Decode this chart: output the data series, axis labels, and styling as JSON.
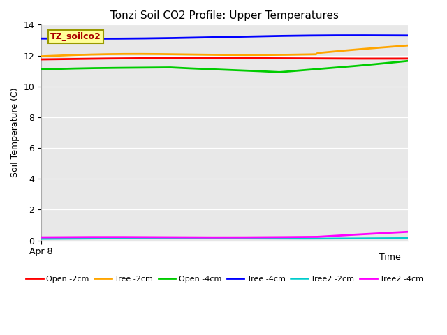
{
  "title": "Tonzi Soil CO2 Profile: Upper Temperatures",
  "ylabel": "Soil Temperature (C)",
  "xlabel": "Time",
  "xlabel_xstart": "Apr 8",
  "ylim": [
    0,
    14
  ],
  "yticks": [
    0,
    2,
    4,
    6,
    8,
    10,
    12,
    14
  ],
  "background_color": "#e8e8e8",
  "fig_background": "#ffffff",
  "label_box_text": "TZ_soilco2",
  "label_box_color": "#ffff99",
  "label_box_textcolor": "#aa0000",
  "label_box_edgecolor": "#999900",
  "n_points": 200,
  "grid_color": "#ffffff",
  "line_colors": {
    "blue": "#0000ff",
    "orange": "#ffa500",
    "red": "#ff0000",
    "green": "#00cc00",
    "cyan": "#00cccc",
    "magenta": "#ff00ff"
  }
}
